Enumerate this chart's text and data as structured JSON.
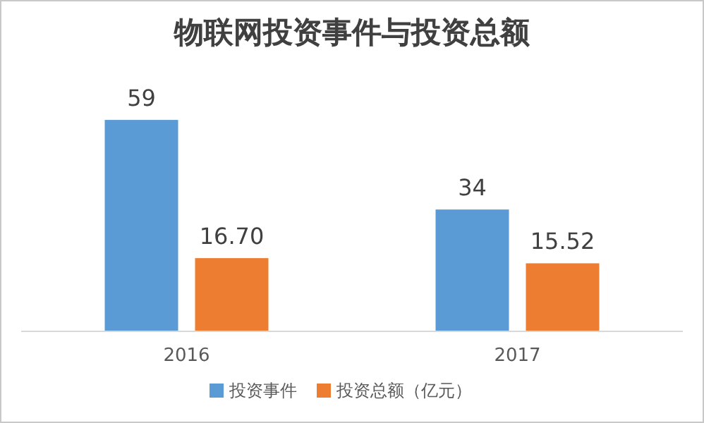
{
  "chart_data": {
    "type": "bar",
    "title": "物联网投资事件与投资总额",
    "categories": [
      "2016",
      "2017"
    ],
    "series": [
      {
        "name": "投资事件",
        "color": "#5b9bd5",
        "values": [
          59,
          34
        ]
      },
      {
        "name": "投资总额（亿元）",
        "color": "#ed7d31",
        "values": [
          16.7,
          15.52
        ],
        "axis": "y2",
        "value_labels": [
          "16.70",
          "15.52"
        ]
      }
    ],
    "tick_labels": "x",
    "data_labels": true,
    "legend": "bottom"
  }
}
